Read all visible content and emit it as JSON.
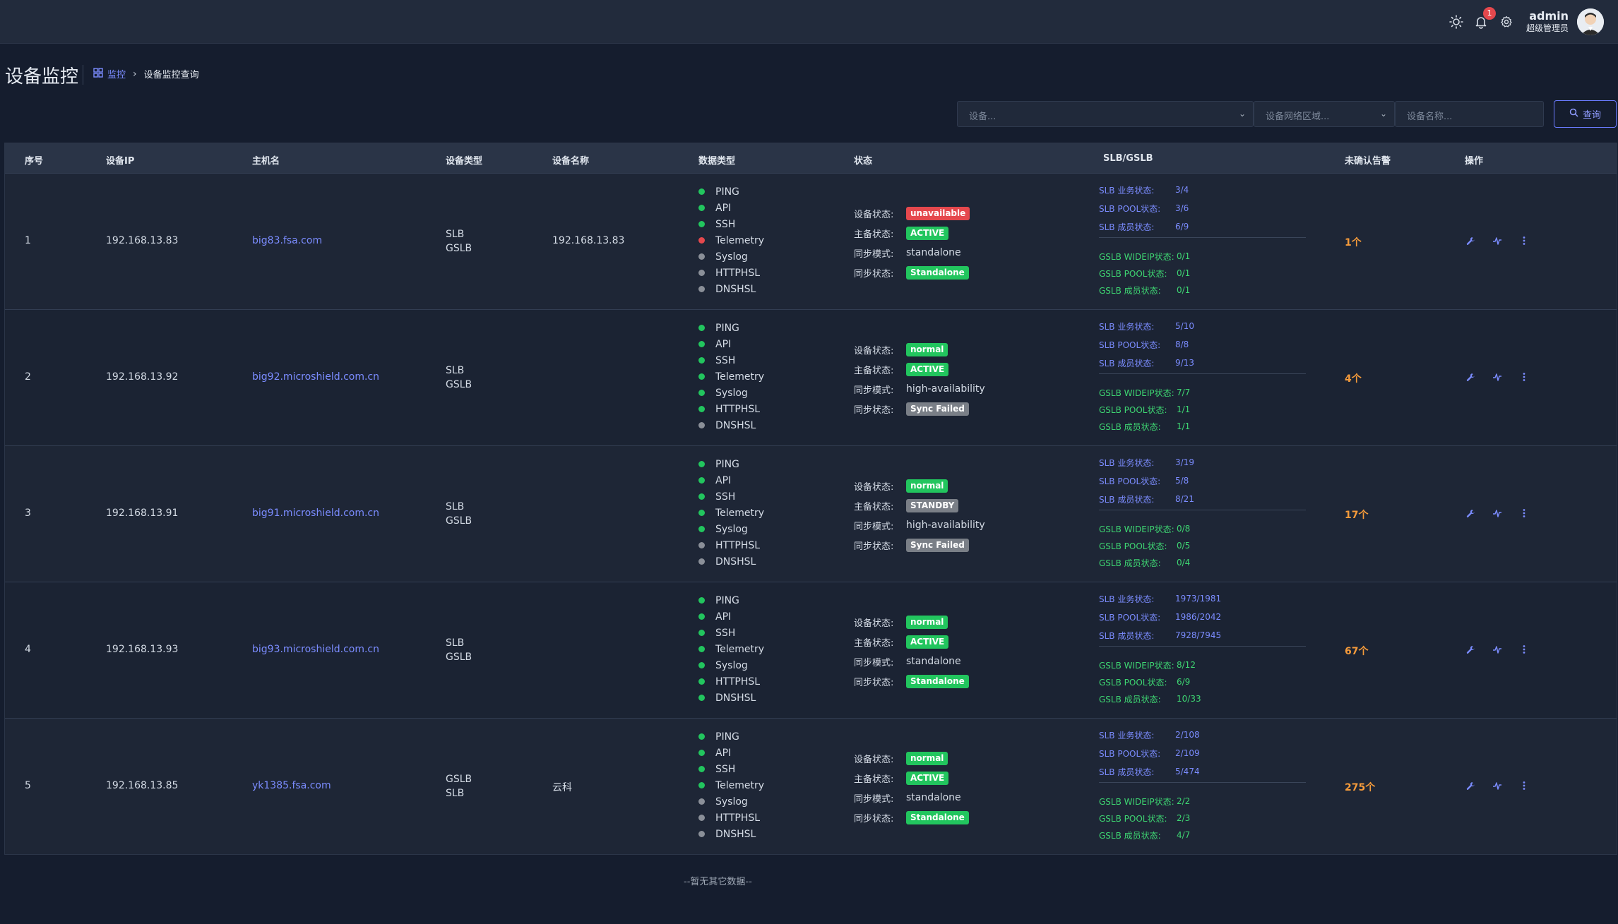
{
  "topbar": {
    "notification_count": "1",
    "user_name": "admin",
    "user_role": "超级管理员"
  },
  "page": {
    "title": "设备监控",
    "breadcrumb_root": "监控",
    "breadcrumb_current": "设备监控查询"
  },
  "filters": {
    "device_placeholder": "设备...",
    "zone_placeholder": "设备网络区域...",
    "name_placeholder": "设备名称...",
    "search_label": "查询"
  },
  "table": {
    "headers": [
      "序号",
      "设备IP",
      "主机名",
      "设备类型",
      "设备名称",
      "数据类型",
      "状态",
      "SLB/GSLB",
      "未确认告警",
      "操作"
    ],
    "status_labels": [
      "设备状态:",
      "主备状态:",
      "同步模式:",
      "同步状态:"
    ],
    "slb_labels": [
      "SLB 业务状态:",
      "SLB POOL状态:",
      "SLB 成员状态:"
    ],
    "gslb_labels": [
      "GSLB WIDEIP状态:",
      "GSLB POOL状态:",
      "GSLB 成员状态:"
    ],
    "data_type_names": [
      "PING",
      "API",
      "SSH",
      "Telemetry",
      "Syslog",
      "HTTPHSL",
      "DNSHSL"
    ],
    "rows": [
      {
        "index": "1",
        "ip": "192.168.13.83",
        "host": "big83.fsa.com",
        "type1": "SLB",
        "type2": "GSLB",
        "name": "192.168.13.83",
        "data_status": [
          "green",
          "green",
          "green",
          "red",
          "gray",
          "gray",
          "gray"
        ],
        "device_status": "unavailable",
        "device_status_color": "#e5484d",
        "ha_status": "ACTIVE",
        "ha_color": "#22c55e",
        "sync_mode": "standalone",
        "sync_status": "Standalone",
        "sync_color": "#22c55e",
        "slb": [
          "3/4",
          "3/6",
          "6/9"
        ],
        "gslb": [
          "0/1",
          "0/1",
          "0/1"
        ],
        "alarms": "1个"
      },
      {
        "index": "2",
        "ip": "192.168.13.92",
        "host": "big92.microshield.com.cn",
        "type1": "SLB",
        "type2": "GSLB",
        "name": "",
        "data_status": [
          "green",
          "green",
          "green",
          "green",
          "green",
          "green",
          "gray"
        ],
        "device_status": "normal",
        "device_status_color": "#22c55e",
        "ha_status": "ACTIVE",
        "ha_color": "#22c55e",
        "sync_mode": "high-availability",
        "sync_status": "Sync Failed",
        "sync_color": "#7a7f87",
        "slb": [
          "5/10",
          "8/8",
          "9/13"
        ],
        "gslb": [
          "7/7",
          "1/1",
          "1/1"
        ],
        "alarms": "4个"
      },
      {
        "index": "3",
        "ip": "192.168.13.91",
        "host": "big91.microshield.com.cn",
        "type1": "SLB",
        "type2": "GSLB",
        "name": "",
        "data_status": [
          "green",
          "green",
          "green",
          "green",
          "green",
          "gray",
          "gray"
        ],
        "device_status": "normal",
        "device_status_color": "#22c55e",
        "ha_status": "STANDBY",
        "ha_color": "#7a7f87",
        "sync_mode": "high-availability",
        "sync_status": "Sync Failed",
        "sync_color": "#7a7f87",
        "slb": [
          "3/19",
          "5/8",
          "8/21"
        ],
        "gslb": [
          "0/8",
          "0/5",
          "0/4"
        ],
        "alarms": "17个"
      },
      {
        "index": "4",
        "ip": "192.168.13.93",
        "host": "big93.microshield.com.cn",
        "type1": "SLB",
        "type2": "GSLB",
        "name": "",
        "data_status": [
          "green",
          "green",
          "green",
          "green",
          "green",
          "green",
          "green"
        ],
        "device_status": "normal",
        "device_status_color": "#22c55e",
        "ha_status": "ACTIVE",
        "ha_color": "#22c55e",
        "sync_mode": "standalone",
        "sync_status": "Standalone",
        "sync_color": "#22c55e",
        "slb": [
          "1973/1981",
          "1986/2042",
          "7928/7945"
        ],
        "gslb": [
          "8/12",
          "6/9",
          "10/33"
        ],
        "alarms": "67个"
      },
      {
        "index": "5",
        "ip": "192.168.13.85",
        "host": "yk1385.fsa.com",
        "type1": "GSLB",
        "type2": "SLB",
        "name": "云科",
        "data_status": [
          "green",
          "green",
          "green",
          "green",
          "gray",
          "gray",
          "gray"
        ],
        "device_status": "normal",
        "device_status_color": "#22c55e",
        "ha_status": "ACTIVE",
        "ha_color": "#22c55e",
        "sync_mode": "standalone",
        "sync_status": "Standalone",
        "sync_color": "#22c55e",
        "slb": [
          "2/108",
          "2/109",
          "5/474"
        ],
        "gslb": [
          "2/2",
          "2/3",
          "4/7"
        ],
        "alarms": "275个"
      }
    ]
  },
  "footer_note": "--暂无其它数据--",
  "colors": {
    "green": "#22c55e",
    "red": "#e5484d",
    "gray": "#8a8f98",
    "accent": "#7b8cff",
    "alarm": "#f59b3b"
  }
}
